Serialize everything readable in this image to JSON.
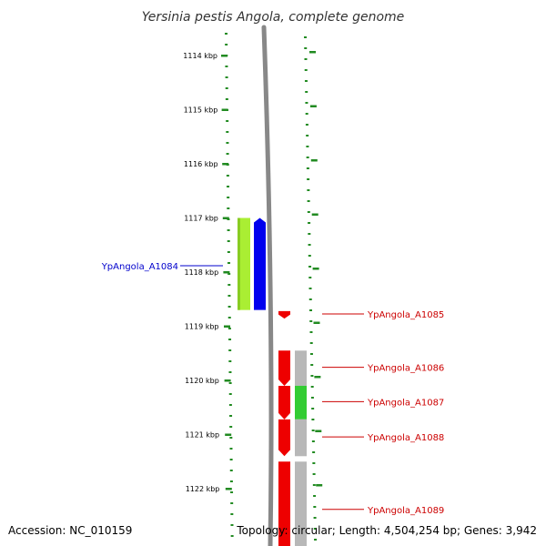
{
  "title": "Yersinia pestis Angola, complete genome",
  "accession": "Accession: NC_010159",
  "summary": "Topology: circular; Length: 4,504,254 bp; Genes: 3,942",
  "ticks": [
    {
      "label": "1114 kbp",
      "kbp": 1114
    },
    {
      "label": "1115 kbp",
      "kbp": 1115
    },
    {
      "label": "1116 kbp",
      "kbp": 1116
    },
    {
      "label": "1117 kbp",
      "kbp": 1117
    },
    {
      "label": "1118 kbp",
      "kbp": 1118
    },
    {
      "label": "1119 kbp",
      "kbp": 1119
    },
    {
      "label": "1120 kbp",
      "kbp": 1120
    },
    {
      "label": "1121 kbp",
      "kbp": 1121
    },
    {
      "label": "1122 kbp",
      "kbp": 1122
    }
  ],
  "genes": [
    {
      "name": "YpAngola_A1084",
      "strand": "forward",
      "start_kbp": 1117.0,
      "end_kbp": 1118.7,
      "color": "#0000ee",
      "label_color": "#0000cc",
      "side": "left",
      "category_color": "#aaee33"
    },
    {
      "name": "YpAngola_A1085",
      "strand": "reverse",
      "start_kbp": 1118.72,
      "end_kbp": 1118.86,
      "color": "#ee0000",
      "label_color": "#cc0000",
      "side": "right",
      "category_color": null
    },
    {
      "name": "YpAngola_A1086",
      "strand": "reverse",
      "start_kbp": 1119.45,
      "end_kbp": 1120.1,
      "color": "#ee0000",
      "label_color": "#cc0000",
      "side": "right",
      "category_color": "#b8b8b8"
    },
    {
      "name": "YpAngola_A1087",
      "strand": "reverse",
      "start_kbp": 1120.1,
      "end_kbp": 1120.72,
      "color": "#ee0000",
      "label_color": "#cc0000",
      "side": "right",
      "category_color": "#33cc33"
    },
    {
      "name": "YpAngola_A1088",
      "strand": "reverse",
      "start_kbp": 1120.72,
      "end_kbp": 1121.4,
      "color": "#ee0000",
      "label_color": "#cc0000",
      "side": "right",
      "category_color": "#b8b8b8"
    },
    {
      "name": "YpAngola_A1089",
      "strand": "reverse",
      "start_kbp": 1121.5,
      "end_kbp": 1123.3,
      "color": "#ee0000",
      "label_color": "#cc0000",
      "side": "right",
      "category_color": "#b8b8b8"
    }
  ],
  "colors": {
    "tick": "#228b22",
    "backbone": "#888888"
  }
}
